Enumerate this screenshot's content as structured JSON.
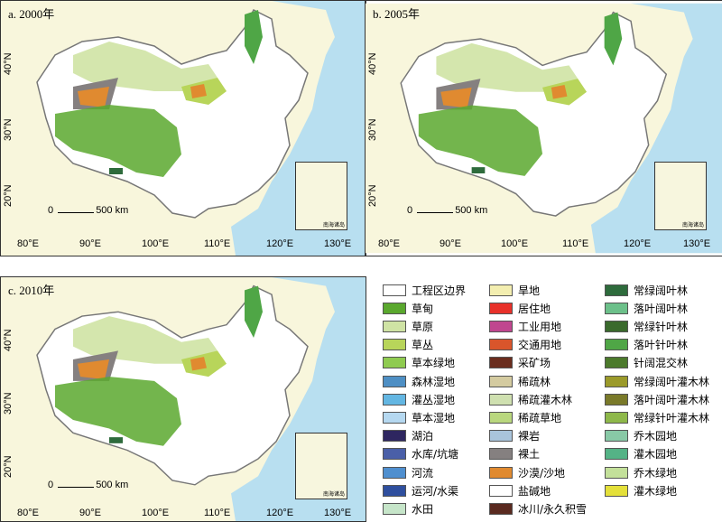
{
  "panels": [
    {
      "label": "a. 2000年",
      "scale": "500 km",
      "x_ticks": [
        "80°E",
        "90°E",
        "100°E",
        "110°E",
        "120°E",
        "130°E"
      ],
      "y_ticks": [
        "40°N",
        "30°N",
        "20°N"
      ],
      "inset_label": "南海诸岛"
    },
    {
      "label": "b. 2005年",
      "scale": "500 km",
      "x_ticks": [
        "80°E",
        "90°E",
        "100°E",
        "110°E",
        "120°E",
        "130°E"
      ],
      "y_ticks": [
        "40°N",
        "30°N",
        "20°N"
      ],
      "inset_label": "南海诸岛"
    },
    {
      "label": "c. 2010年",
      "scale": "500 km",
      "x_ticks": [
        "80°E",
        "90°E",
        "100°E",
        "110°E",
        "120°E",
        "130°E"
      ],
      "y_ticks": [
        "40°N",
        "30°N",
        "20°N"
      ],
      "inset_label": "南海诸岛"
    }
  ],
  "legend": [
    {
      "label": "工程区边界",
      "color": "#ffffff"
    },
    {
      "label": "草甸",
      "color": "#5aa82e"
    },
    {
      "label": "草原",
      "color": "#cfe3a4"
    },
    {
      "label": "草丛",
      "color": "#b8d55a"
    },
    {
      "label": "草本绿地",
      "color": "#8fcb50"
    },
    {
      "label": "森林湿地",
      "color": "#4e8fc4"
    },
    {
      "label": "灌丛湿地",
      "color": "#63b6e2"
    },
    {
      "label": "草本湿地",
      "color": "#b5d8f0"
    },
    {
      "label": "湖泊",
      "color": "#2e2660"
    },
    {
      "label": "水库/坑塘",
      "color": "#4a5fa8"
    },
    {
      "label": "河流",
      "color": "#4f8fcf"
    },
    {
      "label": "运河/水渠",
      "color": "#2f4f9e"
    },
    {
      "label": "水田",
      "color": "#c6e5c9"
    },
    {
      "label": "旱地",
      "color": "#f3eeb0"
    },
    {
      "label": "居住地",
      "color": "#e8312a"
    },
    {
      "label": "工业用地",
      "color": "#c0468f"
    },
    {
      "label": "交通用地",
      "color": "#d9552b"
    },
    {
      "label": "采矿场",
      "color": "#6b2d1e"
    },
    {
      "label": "稀疏林",
      "color": "#d4cba0"
    },
    {
      "label": "稀疏灌木林",
      "color": "#cfe0b0"
    },
    {
      "label": "稀疏草地",
      "color": "#b9d77e"
    },
    {
      "label": "裸岩",
      "color": "#a9c4db"
    },
    {
      "label": "裸土",
      "color": "#858080"
    },
    {
      "label": "沙漠/沙地",
      "color": "#e08a30"
    },
    {
      "label": "盐碱地",
      "color": "#ffffff"
    },
    {
      "label": "冰川/永久积雪",
      "color": "#5a2a20"
    },
    {
      "label": "常绿阔叶林",
      "color": "#2e6b3c"
    },
    {
      "label": "落叶阔叶林",
      "color": "#6cc08a"
    },
    {
      "label": "常绿针叶林",
      "color": "#3a6a2c"
    },
    {
      "label": "落叶针叶林",
      "color": "#4fa646"
    },
    {
      "label": "针阔混交林",
      "color": "#4c7a2c"
    },
    {
      "label": "常绿阔叶灌木林",
      "color": "#9b9a2a"
    },
    {
      "label": "落叶阔叶灌木林",
      "color": "#7a7a2a"
    },
    {
      "label": "常绿针叶灌木林",
      "color": "#8eb84a"
    },
    {
      "label": "乔木园地",
      "color": "#88c9a6"
    },
    {
      "label": "灌木园地",
      "color": "#54b386"
    },
    {
      "label": "乔木绿地",
      "color": "#c3e09a"
    },
    {
      "label": "灌木绿地",
      "color": "#e4e03a"
    }
  ],
  "colors": {
    "sea": "#b8dff0",
    "land": "#f8f6dc",
    "boundary": "#777777"
  }
}
